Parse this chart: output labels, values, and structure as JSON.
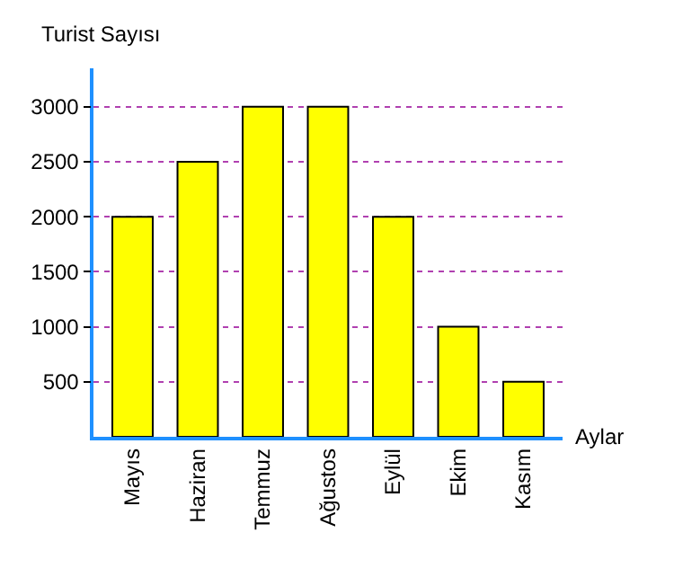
{
  "chart_data": {
    "type": "bar",
    "xlabel": "Aylar",
    "ylabel": "Turist Sayısı",
    "categories": [
      "Mayıs",
      "Haziran",
      "Temmuz",
      "Ağustos",
      "Eylül",
      "Ekim",
      "Kasım"
    ],
    "values": [
      2000,
      2500,
      3000,
      3000,
      2000,
      1000,
      500
    ],
    "color": "#ffff00",
    "ylim": [
      0,
      3350
    ],
    "yticks": [
      500,
      1000,
      1500,
      2000,
      2500,
      3000
    ],
    "grid": "y"
  }
}
